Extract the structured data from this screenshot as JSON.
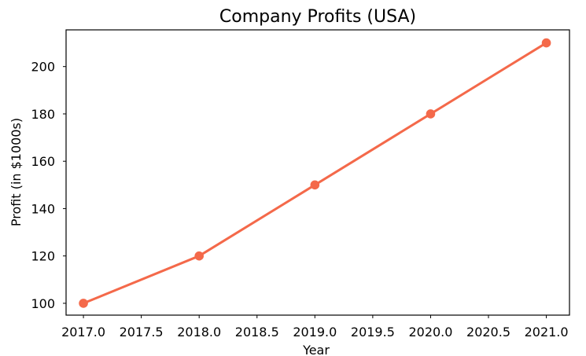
{
  "chart_data": {
    "type": "line",
    "title": "Company Profits (USA)",
    "xlabel": "Year",
    "ylabel": "Profit (in $1000s)",
    "x": [
      2017,
      2018,
      2019,
      2020,
      2021
    ],
    "series": [
      {
        "values": [
          100,
          120,
          150,
          180,
          210
        ],
        "color": "#f4694a"
      }
    ],
    "xlim": [
      2016.85,
      2021.2
    ],
    "ylim": [
      95,
      215.5
    ],
    "x_ticks": [
      2017.0,
      2017.5,
      2018.0,
      2018.5,
      2019.0,
      2019.5,
      2020.0,
      2020.5,
      2021.0
    ],
    "x_tick_labels": [
      "2017.0",
      "2017.5",
      "2018.0",
      "2018.5",
      "2019.0",
      "2019.5",
      "2020.0",
      "2020.5",
      "2021.0"
    ],
    "y_ticks": [
      100,
      120,
      140,
      160,
      180,
      200
    ],
    "y_tick_labels": [
      "100",
      "120",
      "140",
      "160",
      "180",
      "200"
    ],
    "grid": false,
    "legend": false
  }
}
